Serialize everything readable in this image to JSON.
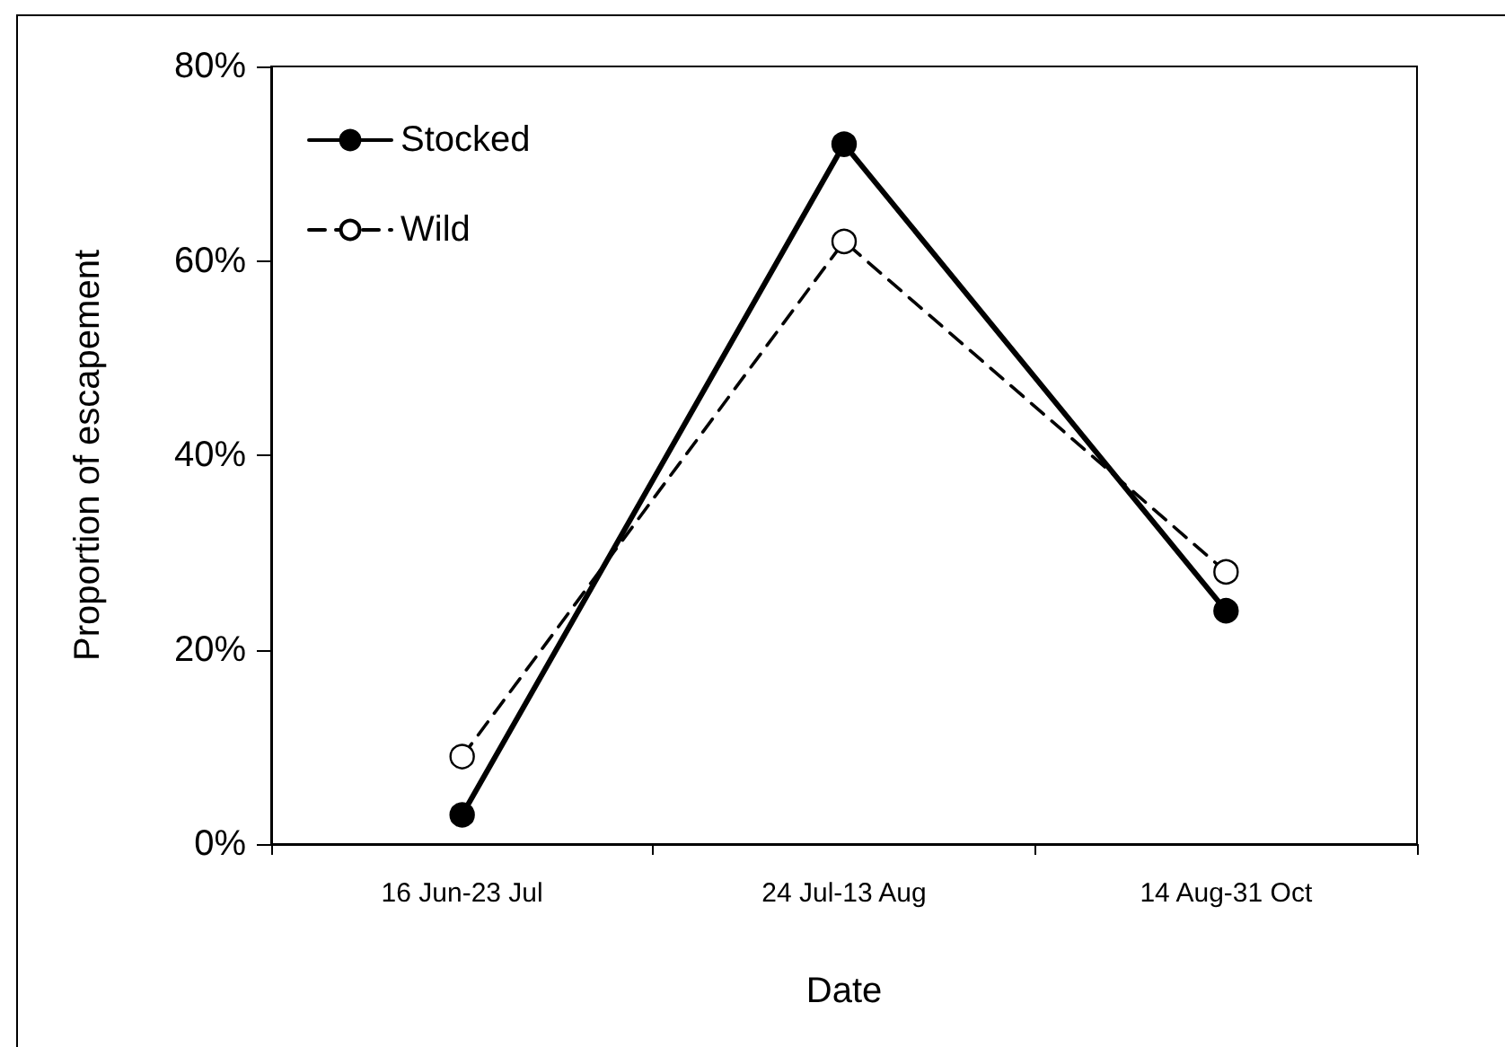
{
  "chart_data": {
    "type": "line",
    "xlabel": "Date",
    "ylabel": "Proportion of escapement",
    "categories": [
      "16 Jun-23 Jul",
      "24 Jul-13 Aug",
      "14 Aug-31 Oct"
    ],
    "series": [
      {
        "name": "Stocked",
        "color": "#000000",
        "values": [
          3,
          72,
          24
        ],
        "line_style": "solid"
      },
      {
        "name": "Wild",
        "color": "#000000",
        "values": [
          9,
          62,
          28
        ],
        "line_style": "dashed"
      }
    ],
    "ylim": [
      0,
      80
    ],
    "yticks": [
      {
        "value": 0,
        "label": "0%"
      },
      {
        "value": 20,
        "label": "20%"
      },
      {
        "value": 40,
        "label": "40%"
      },
      {
        "value": 60,
        "label": "60%"
      },
      {
        "value": 80,
        "label": "80%"
      }
    ],
    "grid": false,
    "legend": "top left",
    "marker": "circle"
  }
}
